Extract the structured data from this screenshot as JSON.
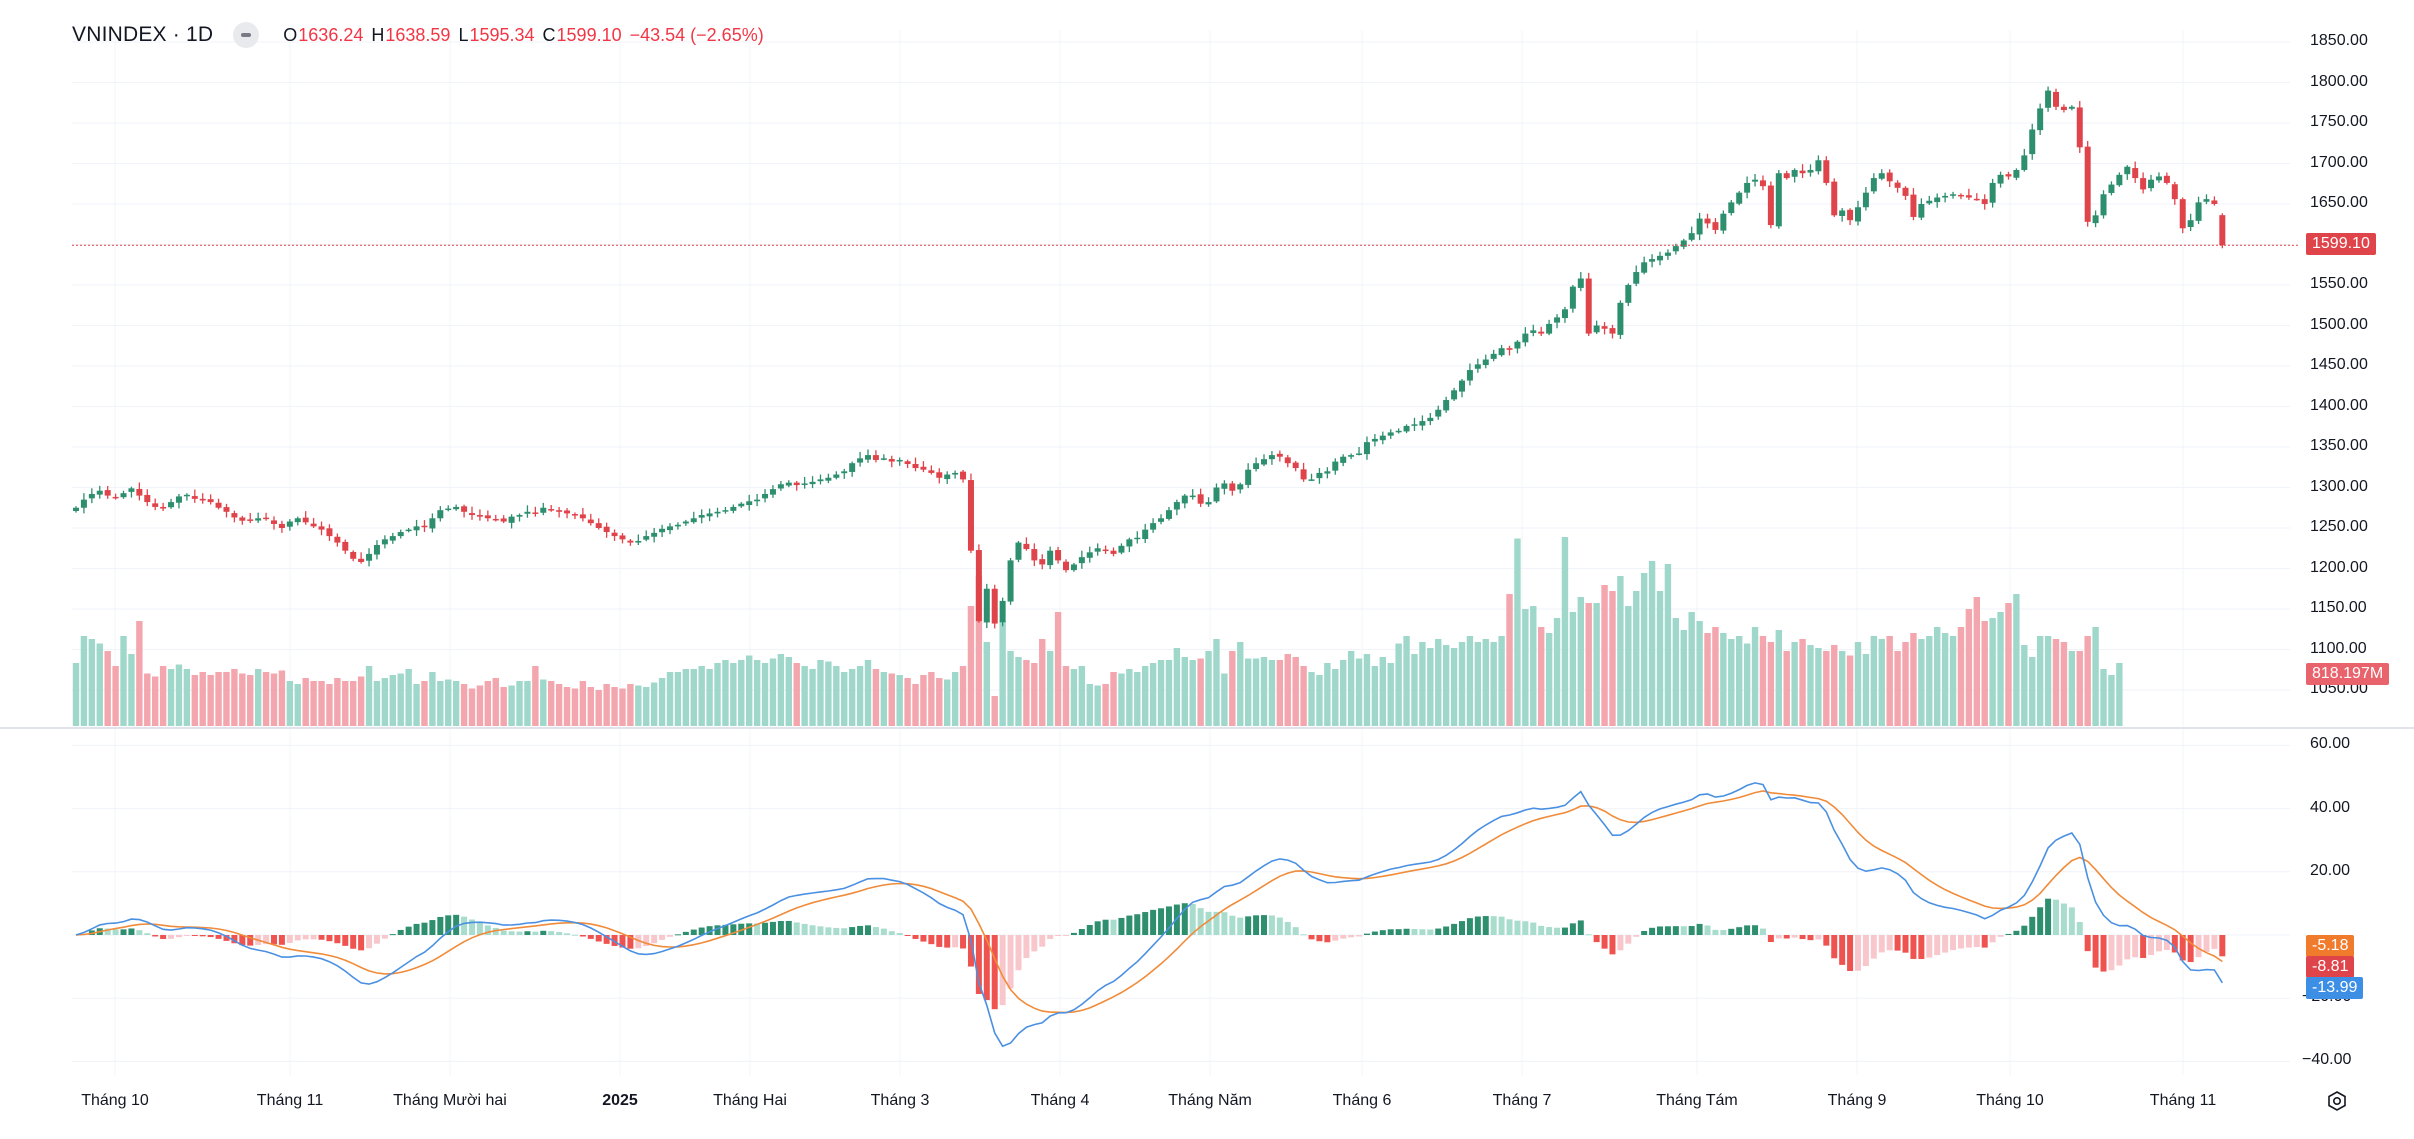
{
  "legend": {
    "symbol": "VNINDEX · 1D",
    "open_key": "O",
    "open": "1636.24",
    "high_key": "H",
    "high": "1638.59",
    "low_key": "L",
    "low": "1595.34",
    "close_key": "C",
    "close": "1599.10",
    "change": "−43.54 (−2.65%)"
  },
  "price_axis": [
    "1850.00",
    "1800.00",
    "1750.00",
    "1700.00",
    "1650.00",
    "1600.00",
    "1550.00",
    "1500.00",
    "1450.00",
    "1400.00",
    "1350.00",
    "1300.00",
    "1250.00",
    "1200.00",
    "1150.00",
    "1100.00",
    "1050.00"
  ],
  "last_price_tag": "1599.10",
  "volume_tag": "818.197M",
  "macd_axis": [
    "60.00",
    "40.00",
    "20.00",
    "0.00",
    "−20.00",
    "−40.00"
  ],
  "macd_tags": {
    "signal": "-5.18",
    "histogram": "-8.81",
    "macd": "-13.99"
  },
  "time_axis": [
    {
      "label": "Tháng 10",
      "bold": false
    },
    {
      "label": "Tháng 11",
      "bold": false
    },
    {
      "label": "Tháng Mười hai",
      "bold": false
    },
    {
      "label": "2025",
      "bold": true
    },
    {
      "label": "Tháng Hai",
      "bold": false
    },
    {
      "label": "Tháng 3",
      "bold": false
    },
    {
      "label": "Tháng 4",
      "bold": false
    },
    {
      "label": "Tháng Năm",
      "bold": false
    },
    {
      "label": "Tháng 6",
      "bold": false
    },
    {
      "label": "Tháng 7",
      "bold": false
    },
    {
      "label": "Tháng Tám",
      "bold": false
    },
    {
      "label": "Tháng 9",
      "bold": false
    },
    {
      "label": "Tháng 10",
      "bold": false
    },
    {
      "label": "Tháng 11",
      "bold": false
    }
  ],
  "icons": {
    "settings": "gear-icon",
    "collapse": "minus-icon"
  },
  "colors": {
    "up": "#26a69a",
    "down": "#ef5350",
    "up_body": "#2e8f6e",
    "down_body": "#e0444b",
    "vol_up": "#9fd8cb",
    "vol_down": "#f3a6ad",
    "macd": "#2962ff",
    "macd_line": "#4a90e2",
    "signal": "#f08b3a",
    "hist_up_strong": "#2e8f6e",
    "hist_up_weak": "#a8dccd",
    "hist_down_strong": "#ef5350",
    "hist_down_weak": "#f8c7cb",
    "last_price": "#e0444b"
  },
  "chart_data": {
    "type": "candlestick",
    "title": "VNINDEX · 1D",
    "xlabel": "",
    "ylabel": "",
    "price_range": [
      1010,
      1870
    ],
    "macd_range": [
      -45,
      62
    ],
    "macd_params": [
      12,
      26,
      9
    ],
    "closes": [
      1275,
      1285,
      1292,
      1296,
      1290,
      1288,
      1293,
      1299,
      1290,
      1282,
      1276,
      1274,
      1282,
      1289,
      1291,
      1286,
      1284,
      1282,
      1275,
      1270,
      1263,
      1259,
      1260,
      1262,
      1261,
      1255,
      1250,
      1258,
      1262,
      1257,
      1252,
      1248,
      1240,
      1232,
      1222,
      1212,
      1208,
      1218,
      1229,
      1236,
      1240,
      1245,
      1248,
      1252,
      1251,
      1262,
      1272,
      1274,
      1276,
      1270,
      1266,
      1264,
      1262,
      1261,
      1258,
      1264,
      1266,
      1270,
      1268,
      1275,
      1272,
      1270,
      1268,
      1266,
      1262,
      1256,
      1250,
      1245,
      1240,
      1236,
      1232,
      1234,
      1240,
      1244,
      1249,
      1252,
      1254,
      1258,
      1262,
      1266,
      1268,
      1270,
      1272,
      1276,
      1280,
      1283,
      1285,
      1292,
      1298,
      1304,
      1306,
      1303,
      1305,
      1307,
      1310,
      1312,
      1316,
      1320,
      1330,
      1336,
      1340,
      1334,
      1336,
      1332,
      1334,
      1329,
      1324,
      1322,
      1318,
      1312,
      1316,
      1318,
      1310,
      1222,
      1135,
      1175,
      1132,
      1160,
      1210,
      1232,
      1224,
      1210,
      1205,
      1222,
      1210,
      1198,
      1205,
      1214,
      1220,
      1225,
      1222,
      1218,
      1228,
      1236,
      1238,
      1248,
      1256,
      1262,
      1272,
      1282,
      1290,
      1290,
      1280,
      1282,
      1300,
      1305,
      1296,
      1304,
      1322,
      1330,
      1335,
      1340,
      1338,
      1330,
      1324,
      1310,
      1310,
      1318,
      1320,
      1332,
      1338,
      1340,
      1342,
      1356,
      1360,
      1364,
      1368,
      1370,
      1376,
      1378,
      1382,
      1386,
      1396,
      1408,
      1420,
      1432,
      1445,
      1452,
      1458,
      1465,
      1472,
      1470,
      1480,
      1490,
      1494,
      1490,
      1502,
      1510,
      1520,
      1548,
      1558,
      1490,
      1500,
      1496,
      1490,
      1528,
      1550,
      1566,
      1578,
      1582,
      1586,
      1590,
      1598,
      1605,
      1614,
      1632,
      1626,
      1618,
      1638,
      1652,
      1664,
      1676,
      1680,
      1672,
      1624,
      1688,
      1682,
      1692,
      1688,
      1692,
      1704,
      1676,
      1636,
      1642,
      1630,
      1646,
      1664,
      1682,
      1688,
      1678,
      1670,
      1660,
      1634,
      1650,
      1654,
      1658,
      1660,
      1662,
      1660,
      1658,
      1656,
      1650,
      1676,
      1686,
      1684,
      1692,
      1710,
      1742,
      1768,
      1790,
      1770,
      1766,
      1770,
      1720,
      1628,
      1636,
      1662,
      1674,
      1686,
      1696,
      1682,
      1668,
      1680,
      1684,
      1676,
      1656,
      1620,
      1630,
      1652,
      1656,
      1650,
      1599.1
    ],
    "volumes_rel": [
      0.42,
      0.6,
      0.58,
      0.55,
      0.5,
      0.4,
      0.6,
      0.48,
      0.7,
      0.35,
      0.33,
      0.4,
      0.38,
      0.41,
      0.38,
      0.34,
      0.36,
      0.34,
      0.36,
      0.36,
      0.38,
      0.35,
      0.34,
      0.38,
      0.36,
      0.35,
      0.37,
      0.3,
      0.28,
      0.32,
      0.3,
      0.3,
      0.28,
      0.32,
      0.3,
      0.3,
      0.33,
      0.4,
      0.3,
      0.32,
      0.34,
      0.35,
      0.38,
      0.28,
      0.3,
      0.36,
      0.3,
      0.31,
      0.3,
      0.28,
      0.25,
      0.27,
      0.3,
      0.32,
      0.26,
      0.27,
      0.3,
      0.3,
      0.4,
      0.31,
      0.3,
      0.28,
      0.26,
      0.25,
      0.3,
      0.26,
      0.24,
      0.28,
      0.26,
      0.25,
      0.28,
      0.27,
      0.26,
      0.29,
      0.32,
      0.36,
      0.36,
      0.38,
      0.38,
      0.4,
      0.38,
      0.42,
      0.44,
      0.42,
      0.44,
      0.47,
      0.44,
      0.42,
      0.45,
      0.48,
      0.46,
      0.42,
      0.4,
      0.38,
      0.44,
      0.43,
      0.4,
      0.36,
      0.38,
      0.4,
      0.44,
      0.38,
      0.36,
      0.35,
      0.34,
      0.32,
      0.28,
      0.34,
      0.36,
      0.32,
      0.31,
      0.36,
      0.4,
      0.8,
      1.0,
      0.56,
      0.2,
      0.7,
      0.5,
      0.46,
      0.44,
      0.42,
      0.58,
      0.5,
      0.76,
      0.4,
      0.38,
      0.4,
      0.28,
      0.27,
      0.28,
      0.36,
      0.35,
      0.38,
      0.36,
      0.4,
      0.42,
      0.44,
      0.44,
      0.52,
      0.46,
      0.44,
      0.45,
      0.5,
      0.58,
      0.35,
      0.5,
      0.56,
      0.45,
      0.45,
      0.46,
      0.44,
      0.44,
      0.48,
      0.46,
      0.4,
      0.36,
      0.34,
      0.42,
      0.38,
      0.44,
      0.5,
      0.45,
      0.48,
      0.4,
      0.46,
      0.42,
      0.55,
      0.6,
      0.48,
      0.56,
      0.52,
      0.58,
      0.54,
      0.52,
      0.56,
      0.6,
      0.56,
      0.58,
      0.56,
      0.6,
      0.88,
      1.25,
      0.78,
      0.8,
      0.66,
      0.62,
      0.72,
      1.26,
      0.76,
      0.86,
      0.82,
      0.82,
      0.94,
      0.9,
      1.0,
      0.8,
      0.9,
      1.02,
      1.1,
      0.9,
      1.08,
      0.72,
      0.64,
      0.76,
      0.7,
      0.62,
      0.66,
      0.62,
      0.58,
      0.6,
      0.55,
      0.66,
      0.6,
      0.56,
      0.64,
      0.5,
      0.56,
      0.58,
      0.54,
      0.52,
      0.5,
      0.54,
      0.5,
      0.47,
      0.56,
      0.48,
      0.6,
      0.58,
      0.6,
      0.5,
      0.56,
      0.62,
      0.58,
      0.6,
      0.66,
      0.62,
      0.6,
      0.66,
      0.78,
      0.86,
      0.7,
      0.72,
      0.76,
      0.82,
      0.88,
      0.54,
      0.46,
      0.6,
      0.6,
      0.58,
      0.56,
      0.5,
      0.5,
      0.6,
      0.66,
      0.38,
      0.34,
      0.42
    ],
    "last_volume": "818.197M",
    "last_macd": -13.99,
    "last_signal": -5.18,
    "last_histogram": -8.81
  }
}
